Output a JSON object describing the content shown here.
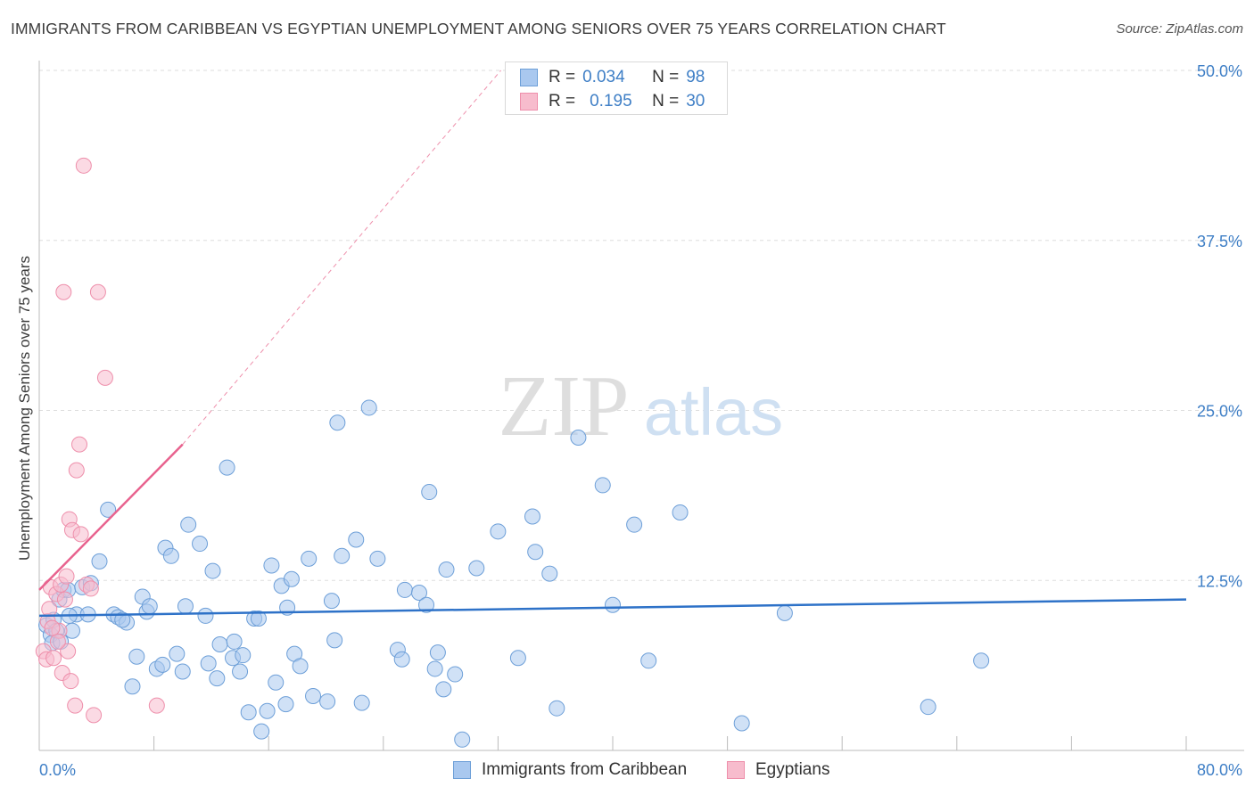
{
  "title": "IMMIGRANTS FROM CARIBBEAN VS EGYPTIAN UNEMPLOYMENT AMONG SENIORS OVER 75 YEARS CORRELATION CHART",
  "source": "Source: ZipAtlas.com",
  "legend_top": {
    "rows": [
      {
        "r_label": "R =",
        "r_value": "0.034",
        "n_label": "N =",
        "n_value": "98"
      },
      {
        "r_label": "R =",
        "r_value": "0.195",
        "n_label": "N =",
        "n_value": "30"
      }
    ]
  },
  "watermark": {
    "zip": "ZIP",
    "atlas": "atlas"
  },
  "colors": {
    "blue_fill": "#a9c8ef",
    "blue_stroke": "#6d9fd8",
    "blue_line": "#2e72c8",
    "pink_fill": "#f7bccd",
    "pink_stroke": "#ee8fab",
    "pink_line": "#e8628e",
    "tick_label": "#3f7fc6",
    "grid": "#dddddd"
  },
  "chart_data": {
    "type": "scatter",
    "title": "IMMIGRANTS FROM CARIBBEAN VS EGYPTIAN UNEMPLOYMENT AMONG SENIORS OVER 75 YEARS CORRELATION CHART",
    "xlabel": "",
    "ylabel": "Unemployment Among Seniors over 75 years",
    "xlim": [
      0,
      80
    ],
    "ylim": [
      0,
      50
    ],
    "x_tick_labels": [
      "0.0%",
      "80.0%"
    ],
    "y_ticks": [
      12.5,
      25.0,
      37.5,
      50.0
    ],
    "y_tick_labels": [
      "12.5%",
      "25.0%",
      "37.5%",
      "50.0%"
    ],
    "legend": [
      "Immigrants from Caribbean",
      "Egyptians"
    ],
    "series": [
      {
        "name": "Immigrants from Caribbean",
        "r": 0.034,
        "n": 98,
        "trend": {
          "x": [
            0,
            80
          ],
          "y": [
            9.9,
            11.1
          ]
        },
        "points": [
          [
            0.5,
            9.2
          ],
          [
            0.8,
            8.5
          ],
          [
            1.0,
            9.6
          ],
          [
            1.2,
            8.8
          ],
          [
            1.4,
            11.1
          ],
          [
            1.7,
            11.8
          ],
          [
            2.0,
            11.8
          ],
          [
            2.3,
            8.8
          ],
          [
            2.6,
            10.0
          ],
          [
            0.9,
            7.9
          ],
          [
            1.5,
            8.0
          ],
          [
            3.0,
            12.0
          ],
          [
            3.6,
            12.3
          ],
          [
            4.2,
            13.9
          ],
          [
            4.8,
            17.7
          ],
          [
            5.2,
            10.0
          ],
          [
            5.5,
            9.8
          ],
          [
            6.1,
            9.4
          ],
          [
            6.5,
            4.7
          ],
          [
            6.8,
            6.9
          ],
          [
            7.2,
            11.3
          ],
          [
            7.5,
            10.2
          ],
          [
            7.7,
            10.6
          ],
          [
            8.2,
            6.0
          ],
          [
            8.6,
            6.3
          ],
          [
            8.8,
            14.9
          ],
          [
            9.2,
            14.3
          ],
          [
            9.6,
            7.1
          ],
          [
            10.0,
            5.8
          ],
          [
            10.2,
            10.6
          ],
          [
            10.4,
            16.6
          ],
          [
            11.2,
            15.2
          ],
          [
            11.6,
            9.9
          ],
          [
            11.8,
            6.4
          ],
          [
            12.1,
            13.2
          ],
          [
            12.4,
            5.3
          ],
          [
            12.6,
            7.8
          ],
          [
            13.1,
            20.8
          ],
          [
            13.5,
            6.8
          ],
          [
            13.6,
            8.0
          ],
          [
            14.0,
            5.8
          ],
          [
            14.2,
            7.0
          ],
          [
            14.6,
            2.8
          ],
          [
            15.0,
            9.7
          ],
          [
            15.3,
            9.7
          ],
          [
            15.5,
            1.4
          ],
          [
            15.9,
            2.9
          ],
          [
            16.2,
            13.6
          ],
          [
            16.5,
            5.0
          ],
          [
            16.9,
            12.1
          ],
          [
            17.2,
            3.4
          ],
          [
            17.3,
            10.5
          ],
          [
            17.6,
            12.6
          ],
          [
            17.8,
            7.1
          ],
          [
            18.2,
            6.2
          ],
          [
            18.8,
            14.1
          ],
          [
            19.1,
            4.0
          ],
          [
            20.1,
            3.6
          ],
          [
            20.4,
            11.0
          ],
          [
            20.6,
            8.1
          ],
          [
            20.8,
            24.1
          ],
          [
            21.1,
            14.3
          ],
          [
            22.1,
            15.5
          ],
          [
            22.5,
            3.5
          ],
          [
            23.0,
            25.2
          ],
          [
            23.6,
            14.1
          ],
          [
            25.0,
            7.4
          ],
          [
            25.3,
            6.7
          ],
          [
            25.5,
            11.8
          ],
          [
            26.5,
            11.6
          ],
          [
            27.0,
            10.7
          ],
          [
            27.2,
            19.0
          ],
          [
            27.6,
            6.0
          ],
          [
            27.8,
            7.2
          ],
          [
            28.2,
            4.5
          ],
          [
            28.4,
            13.3
          ],
          [
            29.0,
            5.6
          ],
          [
            29.5,
            0.8
          ],
          [
            30.5,
            13.4
          ],
          [
            32.0,
            16.1
          ],
          [
            33.4,
            6.8
          ],
          [
            34.4,
            17.2
          ],
          [
            34.6,
            14.6
          ],
          [
            35.6,
            13.0
          ],
          [
            36.1,
            3.1
          ],
          [
            37.6,
            23.0
          ],
          [
            39.3,
            19.5
          ],
          [
            40.0,
            10.7
          ],
          [
            41.5,
            16.6
          ],
          [
            42.5,
            6.6
          ],
          [
            44.7,
            17.5
          ],
          [
            49.0,
            2.0
          ],
          [
            52.0,
            10.1
          ],
          [
            62.0,
            3.2
          ],
          [
            65.7,
            6.6
          ],
          [
            3.4,
            10.0
          ],
          [
            5.8,
            9.6
          ],
          [
            2.1,
            9.9
          ]
        ]
      },
      {
        "name": "Egyptians",
        "r": 0.195,
        "n": 30,
        "trend": {
          "x": [
            0,
            10
          ],
          "y": [
            11.8,
            22.5
          ]
        },
        "trend_extended": {
          "x": [
            10,
            32.2
          ],
          "y": [
            22.5,
            50
          ]
        },
        "points": [
          [
            0.3,
            7.3
          ],
          [
            0.5,
            6.7
          ],
          [
            0.6,
            9.5
          ],
          [
            0.7,
            10.4
          ],
          [
            0.8,
            12.0
          ],
          [
            1.0,
            6.8
          ],
          [
            1.2,
            11.5
          ],
          [
            1.4,
            8.8
          ],
          [
            1.5,
            12.2
          ],
          [
            1.6,
            5.7
          ],
          [
            1.7,
            33.7
          ],
          [
            1.8,
            11.1
          ],
          [
            1.9,
            12.8
          ],
          [
            2.0,
            7.3
          ],
          [
            2.1,
            17.0
          ],
          [
            2.2,
            5.1
          ],
          [
            2.3,
            16.2
          ],
          [
            2.5,
            3.3
          ],
          [
            2.6,
            20.6
          ],
          [
            2.8,
            22.5
          ],
          [
            2.9,
            15.9
          ],
          [
            3.1,
            43.0
          ],
          [
            3.3,
            12.2
          ],
          [
            3.6,
            11.9
          ],
          [
            3.8,
            2.6
          ],
          [
            4.1,
            33.7
          ],
          [
            4.6,
            27.4
          ],
          [
            8.2,
            3.3
          ],
          [
            1.3,
            8.0
          ],
          [
            0.9,
            9.0
          ]
        ]
      }
    ]
  }
}
